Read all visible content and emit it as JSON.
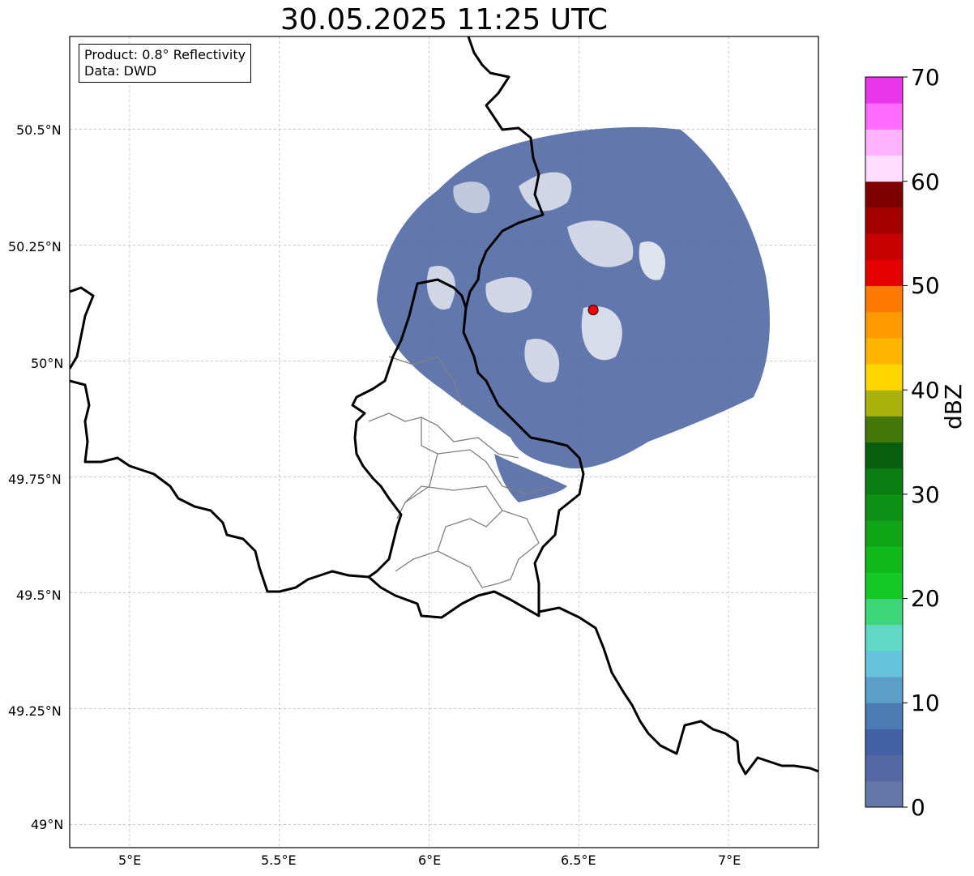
{
  "title": "30.05.2025 11:25 UTC",
  "info": {
    "product": "Product: 0.8° Reflectivity",
    "data": "Data: DWD"
  },
  "lat_ticks": [
    "50.5°N",
    "50.25°N",
    "50°N",
    "49.75°N",
    "49.5°N",
    "49.25°N",
    "49°N"
  ],
  "lon_ticks": [
    "5°E",
    "5.5°E",
    "6°E",
    "6.5°E",
    "7°E"
  ],
  "map_extent": {
    "lon": [
      4.8,
      7.3
    ],
    "lat": [
      48.95,
      50.7
    ]
  },
  "radar_site": {
    "lon": 6.548,
    "lat": 50.11,
    "color": "#ff0000"
  },
  "colorbar": {
    "label": "dBZ",
    "min": 0,
    "max": 70,
    "ticks": [
      "0",
      "10",
      "20",
      "30",
      "40",
      "50",
      "60",
      "70"
    ],
    "colors": [
      "#6577a8",
      "#5468a4",
      "#4260a3",
      "#4c7bb3",
      "#5b9fc8",
      "#66c3de",
      "#60d8c6",
      "#3dd67a",
      "#14c926",
      "#10b91a",
      "#10a516",
      "#0e9215",
      "#0a7e12",
      "#075e0c",
      "#44790a",
      "#a9b10a",
      "#ffd700",
      "#ffb400",
      "#ff9900",
      "#ff7b00",
      "#e60000",
      "#c80000",
      "#a40000",
      "#7f0000",
      "#ffdcff",
      "#ffb2ff",
      "#ff6cff",
      "#ea36ea"
    ]
  }
}
